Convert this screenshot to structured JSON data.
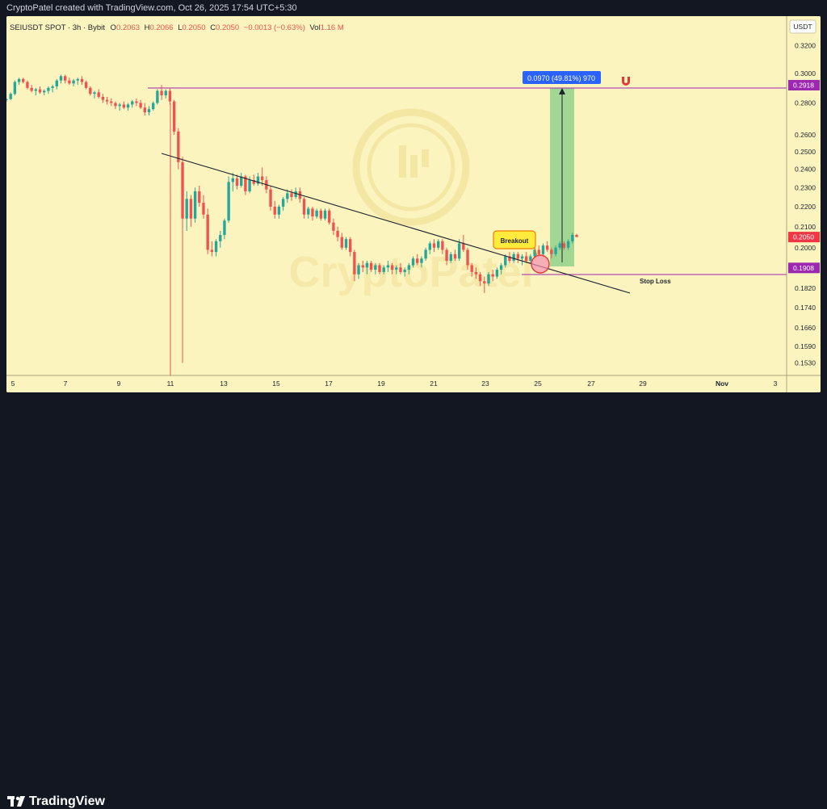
{
  "header": {
    "text": "CryptoPatel created with TradingView.com, Oct 26, 2025 17:54 UTC+5:30"
  },
  "footer": {
    "brand": "TradingView"
  },
  "legend": {
    "symbol": "SEIUSDT SPOT · 3h · Bybit",
    "open_label": "O",
    "open": "0.2063",
    "high_label": "H",
    "high": "0.2066",
    "low_label": "L",
    "low": "0.2050",
    "close_label": "C",
    "close": "0.2050",
    "change": "−0.0013 (−0.63%)",
    "vol_label": "Vol",
    "vol": "1.16 M"
  },
  "price_scale": {
    "currency": "USDT",
    "ticks": [
      "0.3200",
      "0.3000",
      "0.2800",
      "0.2600",
      "0.2500",
      "0.2400",
      "0.2300",
      "0.2200",
      "0.2100",
      "0.2000",
      "0.1908",
      "0.1820",
      "0.1740",
      "0.1660",
      "0.1590",
      "0.1530"
    ],
    "markers": [
      {
        "value": "0.2918",
        "color": "#9c27b0"
      },
      {
        "value": "0.2050",
        "color": "#f23645"
      },
      {
        "value": "0.1908",
        "color": "#9c27b0"
      }
    ]
  },
  "time_scale": {
    "labels": [
      "5",
      "7",
      "9",
      "11",
      "13",
      "15",
      "17",
      "19",
      "21",
      "23",
      "25",
      "27",
      "29",
      "Nov",
      "3"
    ]
  },
  "annotations": {
    "measure_label": "0.0970 (49.81%) 970",
    "breakout_label": "Breakout",
    "stop_loss_label": "Stop Loss"
  },
  "watermark": "CryptoPatel",
  "colors": {
    "up": "#26a69a",
    "down": "#ef5350",
    "background": "#fbf4bf",
    "level": "#9c27b0",
    "target_zone": "#8fd18a"
  },
  "chart_data": {
    "type": "candlestick",
    "title": "SEIUSDT SPOT · 3h · Bybit",
    "xlabel": "",
    "ylabel": "",
    "y_axis_scale": "log",
    "ylim": [
      0.15,
      0.33
    ],
    "x_range": [
      "Oct 4, 2025",
      "Nov 4, 2025"
    ],
    "last": {
      "open": 0.2063,
      "high": 0.2066,
      "low": 0.205,
      "close": 0.205,
      "change": -0.0013,
      "change_pct": -0.63,
      "volume": "1.16M"
    },
    "levels": [
      {
        "price": 0.2918,
        "label": "0.2918"
      },
      {
        "price": 0.1908,
        "label": "Stop Loss"
      }
    ],
    "trendline": [
      {
        "date": "Oct 10",
        "price": 0.252
      },
      {
        "date": "Oct 28",
        "price": 0.184
      }
    ],
    "measure": {
      "from": 0.1947,
      "to": 0.2918,
      "change": 0.097,
      "change_pct": 49.81,
      "bars": 970
    },
    "breakout": {
      "date": "Oct 25",
      "price": 0.196
    },
    "wick_extremes": [
      {
        "date": "Oct 10",
        "low": 0.153
      },
      {
        "date": "Oct 23",
        "low": 0.18
      }
    ],
    "candles": [
      [
        0.282,
        0.283,
        0.281,
        0.2825
      ],
      [
        0.2825,
        0.287,
        0.282,
        0.286
      ],
      [
        0.286,
        0.295,
        0.285,
        0.294
      ],
      [
        0.294,
        0.297,
        0.292,
        0.296
      ],
      [
        0.296,
        0.297,
        0.293,
        0.294
      ],
      [
        0.294,
        0.295,
        0.289,
        0.29
      ],
      [
        0.29,
        0.292,
        0.287,
        0.288
      ],
      [
        0.288,
        0.29,
        0.285,
        0.289
      ],
      [
        0.289,
        0.291,
        0.286,
        0.287
      ],
      [
        0.287,
        0.289,
        0.285,
        0.288
      ],
      [
        0.288,
        0.291,
        0.286,
        0.29
      ],
      [
        0.29,
        0.292,
        0.287,
        0.291
      ],
      [
        0.291,
        0.296,
        0.289,
        0.295
      ],
      [
        0.295,
        0.299,
        0.293,
        0.298
      ],
      [
        0.298,
        0.299,
        0.293,
        0.295
      ],
      [
        0.295,
        0.297,
        0.292,
        0.293
      ],
      [
        0.293,
        0.296,
        0.291,
        0.295
      ],
      [
        0.295,
        0.297,
        0.292,
        0.296
      ],
      [
        0.296,
        0.298,
        0.292,
        0.294
      ],
      [
        0.294,
        0.295,
        0.289,
        0.29
      ],
      [
        0.29,
        0.291,
        0.285,
        0.286
      ],
      [
        0.286,
        0.288,
        0.283,
        0.287
      ],
      [
        0.287,
        0.289,
        0.283,
        0.284
      ],
      [
        0.284,
        0.286,
        0.28,
        0.282
      ],
      [
        0.282,
        0.284,
        0.279,
        0.281
      ],
      [
        0.281,
        0.283,
        0.278,
        0.28
      ],
      [
        0.28,
        0.281,
        0.276,
        0.278
      ],
      [
        0.278,
        0.28,
        0.275,
        0.279
      ],
      [
        0.279,
        0.281,
        0.276,
        0.277
      ],
      [
        0.277,
        0.28,
        0.275,
        0.279
      ],
      [
        0.279,
        0.282,
        0.277,
        0.281
      ],
      [
        0.281,
        0.283,
        0.278,
        0.28
      ],
      [
        0.28,
        0.282,
        0.276,
        0.277
      ],
      [
        0.277,
        0.28,
        0.272,
        0.274
      ],
      [
        0.274,
        0.278,
        0.272,
        0.276
      ],
      [
        0.276,
        0.281,
        0.275,
        0.28
      ],
      [
        0.28,
        0.289,
        0.279,
        0.288
      ],
      [
        0.288,
        0.292,
        0.282,
        0.285
      ],
      [
        0.285,
        0.289,
        0.283,
        0.288
      ],
      [
        0.288,
        0.29,
        0.279,
        0.281
      ],
      [
        0.281,
        0.282,
        0.26,
        0.262
      ],
      [
        0.262,
        0.264,
        0.24,
        0.244
      ],
      [
        0.244,
        0.247,
        0.153,
        0.214
      ],
      [
        0.214,
        0.228,
        0.208,
        0.224
      ],
      [
        0.224,
        0.226,
        0.21,
        0.214
      ],
      [
        0.214,
        0.23,
        0.212,
        0.228
      ],
      [
        0.228,
        0.231,
        0.22,
        0.222
      ],
      [
        0.222,
        0.226,
        0.214,
        0.216
      ],
      [
        0.216,
        0.219,
        0.197,
        0.199
      ],
      [
        0.199,
        0.203,
        0.196,
        0.198
      ],
      [
        0.198,
        0.204,
        0.196,
        0.203
      ],
      [
        0.203,
        0.208,
        0.2,
        0.206
      ],
      [
        0.206,
        0.214,
        0.204,
        0.213
      ],
      [
        0.213,
        0.236,
        0.212,
        0.233
      ],
      [
        0.233,
        0.238,
        0.228,
        0.235
      ],
      [
        0.235,
        0.237,
        0.229,
        0.231
      ],
      [
        0.231,
        0.238,
        0.23,
        0.236
      ],
      [
        0.236,
        0.237,
        0.226,
        0.228
      ],
      [
        0.228,
        0.236,
        0.227,
        0.234
      ],
      [
        0.234,
        0.237,
        0.231,
        0.232
      ],
      [
        0.232,
        0.238,
        0.231,
        0.236
      ],
      [
        0.236,
        0.241,
        0.231,
        0.234
      ],
      [
        0.234,
        0.236,
        0.227,
        0.229
      ],
      [
        0.229,
        0.231,
        0.218,
        0.22
      ],
      [
        0.22,
        0.223,
        0.214,
        0.216
      ],
      [
        0.216,
        0.221,
        0.214,
        0.22
      ],
      [
        0.22,
        0.225,
        0.218,
        0.224
      ],
      [
        0.224,
        0.229,
        0.222,
        0.227
      ],
      [
        0.227,
        0.229,
        0.223,
        0.225
      ],
      [
        0.225,
        0.23,
        0.224,
        0.228
      ],
      [
        0.228,
        0.23,
        0.222,
        0.224
      ],
      [
        0.224,
        0.225,
        0.214,
        0.216
      ],
      [
        0.216,
        0.22,
        0.214,
        0.219
      ],
      [
        0.219,
        0.22,
        0.213,
        0.215
      ],
      [
        0.215,
        0.219,
        0.214,
        0.218
      ],
      [
        0.218,
        0.219,
        0.213,
        0.214
      ],
      [
        0.214,
        0.219,
        0.213,
        0.218
      ],
      [
        0.218,
        0.219,
        0.211,
        0.212
      ],
      [
        0.212,
        0.214,
        0.206,
        0.208
      ],
      [
        0.208,
        0.21,
        0.203,
        0.205
      ],
      [
        0.205,
        0.207,
        0.199,
        0.2
      ],
      [
        0.2,
        0.205,
        0.199,
        0.204
      ],
      [
        0.204,
        0.205,
        0.196,
        0.198
      ],
      [
        0.198,
        0.199,
        0.185,
        0.188
      ],
      [
        0.188,
        0.193,
        0.186,
        0.192
      ],
      [
        0.192,
        0.194,
        0.189,
        0.191
      ],
      [
        0.191,
        0.194,
        0.188,
        0.193
      ],
      [
        0.193,
        0.194,
        0.189,
        0.19
      ],
      [
        0.19,
        0.193,
        0.188,
        0.192
      ],
      [
        0.192,
        0.193,
        0.188,
        0.189
      ],
      [
        0.189,
        0.192,
        0.188,
        0.191
      ],
      [
        0.191,
        0.194,
        0.189,
        0.192
      ],
      [
        0.192,
        0.193,
        0.188,
        0.19
      ],
      [
        0.19,
        0.192,
        0.188,
        0.191
      ],
      [
        0.191,
        0.193,
        0.188,
        0.189
      ],
      [
        0.189,
        0.191,
        0.187,
        0.19
      ],
      [
        0.19,
        0.193,
        0.188,
        0.192
      ],
      [
        0.192,
        0.196,
        0.191,
        0.195
      ],
      [
        0.195,
        0.197,
        0.192,
        0.193
      ],
      [
        0.193,
        0.196,
        0.191,
        0.195
      ],
      [
        0.195,
        0.2,
        0.194,
        0.199
      ],
      [
        0.199,
        0.203,
        0.197,
        0.202
      ],
      [
        0.202,
        0.204,
        0.198,
        0.2
      ],
      [
        0.2,
        0.204,
        0.199,
        0.203
      ],
      [
        0.203,
        0.204,
        0.197,
        0.199
      ],
      [
        0.199,
        0.2,
        0.192,
        0.194
      ],
      [
        0.194,
        0.198,
        0.193,
        0.197
      ],
      [
        0.197,
        0.199,
        0.194,
        0.195
      ],
      [
        0.195,
        0.204,
        0.194,
        0.202
      ],
      [
        0.202,
        0.206,
        0.198,
        0.199
      ],
      [
        0.199,
        0.2,
        0.19,
        0.192
      ],
      [
        0.192,
        0.193,
        0.187,
        0.189
      ],
      [
        0.189,
        0.191,
        0.186,
        0.188
      ],
      [
        0.188,
        0.189,
        0.183,
        0.185
      ],
      [
        0.185,
        0.187,
        0.18,
        0.184
      ],
      [
        0.184,
        0.189,
        0.183,
        0.188
      ],
      [
        0.188,
        0.19,
        0.185,
        0.187
      ],
      [
        0.187,
        0.191,
        0.186,
        0.19
      ],
      [
        0.19,
        0.193,
        0.188,
        0.192
      ],
      [
        0.192,
        0.197,
        0.191,
        0.196
      ],
      [
        0.196,
        0.198,
        0.193,
        0.194
      ],
      [
        0.194,
        0.198,
        0.193,
        0.197
      ],
      [
        0.197,
        0.198,
        0.193,
        0.195
      ],
      [
        0.195,
        0.197,
        0.192,
        0.196
      ],
      [
        0.196,
        0.198,
        0.193,
        0.194
      ],
      [
        0.194,
        0.197,
        0.193,
        0.196
      ],
      [
        0.196,
        0.2,
        0.195,
        0.199
      ],
      [
        0.199,
        0.201,
        0.196,
        0.197
      ],
      [
        0.197,
        0.202,
        0.196,
        0.201
      ],
      [
        0.201,
        0.203,
        0.198,
        0.199
      ],
      [
        0.199,
        0.2,
        0.195,
        0.197
      ],
      [
        0.197,
        0.201,
        0.196,
        0.2
      ],
      [
        0.2,
        0.203,
        0.199,
        0.202
      ],
      [
        0.202,
        0.203,
        0.199,
        0.2
      ],
      [
        0.2,
        0.204,
        0.199,
        0.203
      ],
      [
        0.203,
        0.207,
        0.202,
        0.206
      ],
      [
        0.206,
        0.2066,
        0.205,
        0.205
      ]
    ]
  }
}
